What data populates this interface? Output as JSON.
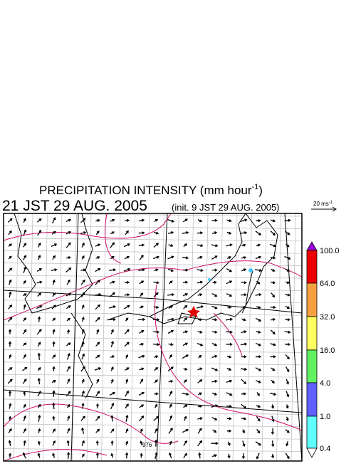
{
  "header": {
    "title": {
      "text": "PRECIPITATION INTENSITY (mm hour",
      "superscript": "-1",
      "close": ")"
    },
    "valid_time": "21 JST 29 AUG. 2005",
    "init_time": "(init. 9 JST 29 AUG. 2005)"
  },
  "wind_reference": {
    "text": "20 ms",
    "superscript": "-1"
  },
  "colorbar": {
    "labels": [
      "100.0",
      "64.0",
      "32.0",
      "16.0",
      "4.0",
      "1.0",
      "0.4"
    ]
  },
  "map": {
    "contour_label": "976"
  }
}
